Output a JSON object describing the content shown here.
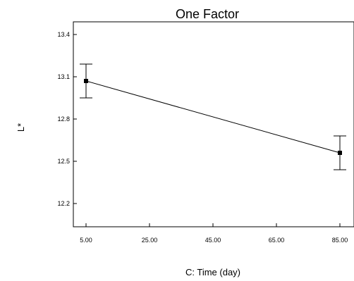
{
  "chart_data": {
    "type": "line",
    "title": "One Factor",
    "xlabel": "C: Time (day)",
    "ylabel": "L*",
    "x_ticks": [
      "5.00",
      "25.00",
      "45.00",
      "65.00",
      "85.00"
    ],
    "y_ticks": [
      "12.2",
      "12.5",
      "12.8",
      "13.1",
      "13.4"
    ],
    "xlim": [
      5,
      85
    ],
    "ylim": [
      12.2,
      13.4
    ],
    "grid": false,
    "points": [
      {
        "x": 5,
        "y": 13.07,
        "err_low": 12.95,
        "err_high": 13.19
      },
      {
        "x": 85,
        "y": 12.56,
        "err_low": 12.44,
        "err_high": 12.68
      }
    ]
  }
}
